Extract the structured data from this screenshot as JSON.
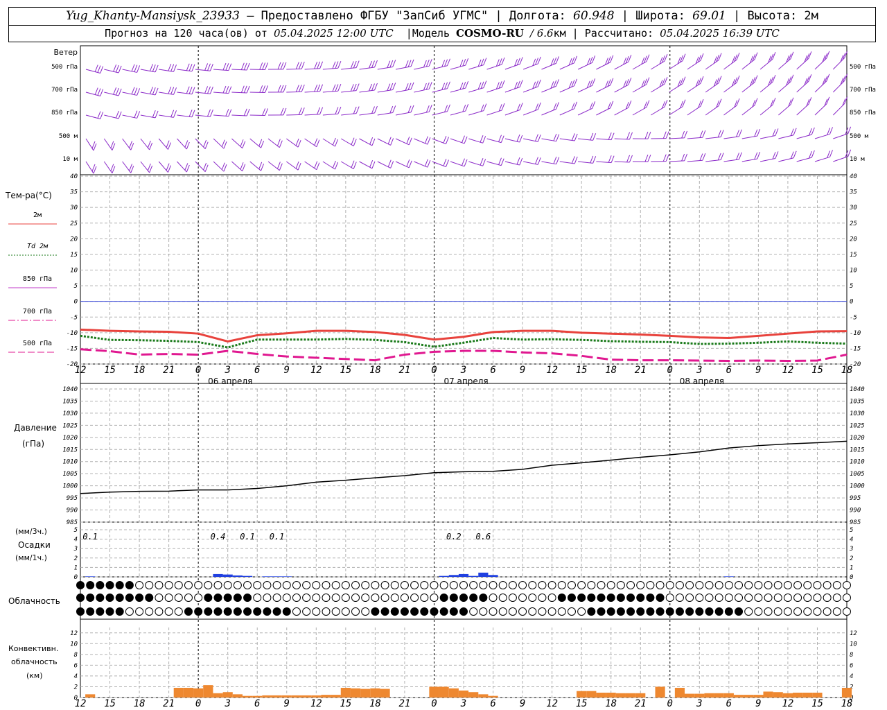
{
  "header": {
    "station": "Yug_Khanty-Mansiysk_23933",
    "provided": "– Предоставлено ФГБУ \"ЗапСиб УГМС\"",
    "lon_label": "Долгота:",
    "lon": "60.948",
    "lat_label": "Широта:",
    "lat": "69.01",
    "height_label": "Высота: 2м",
    "forecast_label": "Прогноз на 120 часа(ов) от",
    "forecast_from": "05.04.2025 12:00 UTC",
    "model_label": "Модель",
    "model": "COSMO-RU",
    "resolution": "/ 6.6",
    "resolution_unit": "км",
    "calc_label": "Рассчитано:",
    "calc_time": "05.04.2025 16:39 UTC"
  },
  "colors": {
    "t2m": "#e8423c",
    "td2m": "#1a7a1a",
    "t850": "#c038c8",
    "t700": "#e01890",
    "t500": "#e01890",
    "wind": "#8a28c8",
    "pressure": "#000000",
    "precip": "#2040e0",
    "conv": "#ee8830",
    "zero_line": "#3a48d8"
  },
  "time_axis": {
    "hour_labels": [
      "12",
      "15",
      "18",
      "21",
      "0",
      "3",
      "6",
      "9",
      "12",
      "15",
      "18",
      "21",
      "0",
      "3",
      "6",
      "9",
      "12",
      "15",
      "18",
      "21",
      "0",
      "3",
      "6",
      "9",
      "12",
      "15",
      "18"
    ],
    "date_labels": [
      {
        "label": "06 апреля",
        "hour_index": 4
      },
      {
        "label": "07 апреля",
        "hour_index": 12
      },
      {
        "label": "08 апреля",
        "hour_index": 20
      }
    ]
  },
  "wind_panel": {
    "title": "Ветер",
    "levels": [
      "500 гПа",
      "700 гПа",
      "850 гПа",
      "500 м",
      "10  м"
    ]
  },
  "temp_panel": {
    "title": "Тем-ра(°C)",
    "legend": [
      {
        "label": "2м",
        "style": "solid",
        "color": "t2m"
      },
      {
        "label": "Td  2м",
        "style": "dotted",
        "color": "td2m"
      },
      {
        "label": "850 гПа",
        "style": "solid",
        "color": "t850"
      },
      {
        "label": "700 гПа",
        "style": "dashdot",
        "color": "t700"
      },
      {
        "label": "500 гПа",
        "style": "dashed",
        "color": "t500"
      }
    ],
    "yticks": [
      40,
      35,
      30,
      25,
      20,
      15,
      10,
      5,
      0,
      -5,
      -10,
      -15,
      -20
    ]
  },
  "pressure_panel": {
    "title": "Давление",
    "unit": "(гПа)",
    "yticks": [
      1040,
      1035,
      1030,
      1025,
      1020,
      1015,
      1010,
      1005,
      1000,
      995,
      990,
      985
    ]
  },
  "precip_panel": {
    "unit1": "(мм/3ч.)",
    "title": "Осадки",
    "unit2": "(мм/1ч.)",
    "yticks": [
      5,
      4,
      3,
      2,
      1,
      0
    ],
    "totals": [
      {
        "hour": 1,
        "label": "0.1"
      },
      {
        "hour": 14,
        "label": "0.4"
      },
      {
        "hour": 17,
        "label": "0.1"
      },
      {
        "hour": 20,
        "label": "0.1"
      },
      {
        "hour": 38,
        "label": "0.2"
      },
      {
        "hour": 41,
        "label": "0.6"
      }
    ]
  },
  "cloud_panel": {
    "title": "Облачность"
  },
  "conv_panel": {
    "title1": "Конвективн.",
    "title2": "облачность",
    "unit": "(км)",
    "yticks": [
      12,
      10,
      8,
      6,
      4,
      2,
      0
    ]
  },
  "chart_data": [
    {
      "type": "line",
      "title": "Тем-ра(°C)",
      "x_hours": [
        0,
        3,
        6,
        9,
        12,
        15,
        18,
        21,
        24,
        27,
        30,
        33,
        36,
        39,
        42,
        45,
        48,
        51,
        54,
        57,
        60,
        63,
        66,
        69,
        72,
        75,
        78
      ],
      "ylim": [
        -20,
        40
      ],
      "series": [
        {
          "name": "2м",
          "values": [
            -9,
            -9.4,
            -9.6,
            -9.7,
            -10.3,
            -12.8,
            -10.8,
            -10.2,
            -9.4,
            -9.4,
            -9.8,
            -10.7,
            -12.2,
            -11.3,
            -9.8,
            -9.4,
            -9.4,
            -10,
            -10.3,
            -10.6,
            -11,
            -11.5,
            -11.7,
            -11,
            -10.3,
            -9.6,
            -9.5
          ]
        },
        {
          "name": "Td  2м",
          "values": [
            -11,
            -12.3,
            -12.4,
            -12.6,
            -13,
            -14.7,
            -12.2,
            -12.2,
            -12.2,
            -12,
            -12.3,
            -13,
            -14.5,
            -13.2,
            -11.7,
            -12.2,
            -12.1,
            -12.3,
            -12.7,
            -12.9,
            -13,
            -13.6,
            -13.5,
            -13.2,
            -12.8,
            -13.2,
            -13.5
          ]
        },
        {
          "name": "500 гПа",
          "values": [
            -15.3,
            -15.9,
            -17,
            -16.8,
            -17,
            -15.8,
            -16.8,
            -17.6,
            -18,
            -18.4,
            -18.8,
            -17,
            -16.1,
            -15.8,
            -15.8,
            -16.3,
            -16.6,
            -17.4,
            -18.6,
            -18.8,
            -18.8,
            -18.9,
            -19,
            -18.9,
            -19,
            -18.9,
            -17
          ]
        }
      ]
    },
    {
      "type": "line",
      "title": "Давление",
      "x_hours": [
        0,
        3,
        6,
        9,
        12,
        15,
        18,
        21,
        24,
        27,
        30,
        33,
        36,
        39,
        42,
        45,
        48,
        51,
        54,
        57,
        60,
        63,
        66,
        69,
        72,
        75,
        78
      ],
      "ylim": [
        985,
        1040
      ],
      "series": [
        {
          "name": "Давление",
          "values": [
            996.8,
            997.4,
            997.7,
            997.8,
            998.3,
            998.3,
            998.9,
            1000,
            1001.5,
            1002.3,
            1003.3,
            1004.2,
            1005.4,
            1005.8,
            1006,
            1006.8,
            1008.5,
            1009.5,
            1010.6,
            1011.8,
            1012.8,
            1014,
            1015.6,
            1016.6,
            1017.3,
            1017.8,
            1018.4
          ]
        }
      ]
    },
    {
      "type": "bar",
      "title": "Осадки",
      "x_hours": [
        0,
        1,
        2,
        3,
        4,
        5,
        6,
        7,
        8,
        9,
        10,
        11,
        12,
        13,
        14,
        15,
        16,
        17,
        18,
        19,
        20,
        21,
        22,
        23,
        24,
        25,
        26,
        27,
        28,
        29,
        30,
        31,
        32,
        33,
        34,
        35,
        36,
        37,
        38,
        39,
        40,
        41,
        42,
        43,
        44,
        45,
        46,
        47,
        48,
        49,
        50,
        51,
        52,
        53,
        54,
        55,
        56,
        57,
        58,
        59,
        60,
        61,
        62,
        63,
        64,
        65,
        66,
        67,
        68,
        69,
        70,
        71,
        72,
        73,
        74,
        75,
        76,
        77,
        78
      ],
      "ylim": [
        0,
        5
      ],
      "values": [
        0,
        0.05,
        0,
        0,
        0,
        0,
        0,
        0,
        0,
        0,
        0,
        0,
        0,
        0,
        0.3,
        0.25,
        0.15,
        0.1,
        0,
        0.05,
        0.05,
        0.05,
        0,
        0,
        0,
        0,
        0,
        0,
        0,
        0,
        0,
        0,
        0,
        0,
        0,
        0,
        0,
        0.1,
        0.2,
        0.3,
        0.1,
        0.45,
        0.2,
        0,
        0,
        0,
        0,
        0,
        0,
        0,
        0,
        0,
        0,
        0,
        0,
        0,
        0,
        0,
        0,
        0,
        0,
        0,
        0,
        0,
        0,
        0,
        0.05,
        0,
        0,
        0,
        0,
        0,
        0,
        0,
        0,
        0,
        0,
        0,
        0
      ]
    },
    {
      "type": "bar",
      "title": "Конвективн. облачность",
      "x_hours": [
        0,
        1,
        2,
        3,
        4,
        5,
        6,
        7,
        8,
        9,
        10,
        11,
        12,
        13,
        14,
        15,
        16,
        17,
        18,
        19,
        20,
        21,
        22,
        23,
        24,
        25,
        26,
        27,
        28,
        29,
        30,
        31,
        32,
        33,
        34,
        35,
        36,
        37,
        38,
        39,
        40,
        41,
        42,
        43,
        44,
        45,
        46,
        47,
        48,
        49,
        50,
        51,
        52,
        53,
        54,
        55,
        56,
        57,
        58,
        59,
        60,
        61,
        62,
        63,
        64,
        65,
        66,
        67,
        68,
        69,
        70,
        71,
        72,
        73,
        74,
        75,
        76,
        77,
        78
      ],
      "ylim": [
        0,
        13
      ],
      "values": [
        0,
        0.6,
        0,
        0,
        0,
        0,
        0,
        0,
        0,
        0,
        1.8,
        1.8,
        1.7,
        2.3,
        0.8,
        1,
        0.6,
        0.3,
        0.3,
        0.4,
        0.4,
        0.4,
        0.4,
        0.4,
        0.4,
        0.5,
        0.5,
        1.8,
        1.7,
        1.6,
        1.7,
        1.6,
        0,
        0,
        0,
        0,
        2,
        2,
        1.7,
        1.3,
        1,
        0.6,
        0.3,
        0,
        0,
        0,
        0,
        0,
        0,
        0,
        0,
        1.2,
        1.2,
        0.9,
        0.9,
        0.8,
        0.8,
        0.8,
        0,
        2,
        0,
        1.8,
        0.7,
        0.7,
        0.8,
        0.8,
        0.8,
        0.5,
        0.5,
        0.5,
        1.1,
        1,
        0.8,
        0.9,
        0.9,
        0.9,
        0,
        0,
        1.8
      ]
    }
  ]
}
